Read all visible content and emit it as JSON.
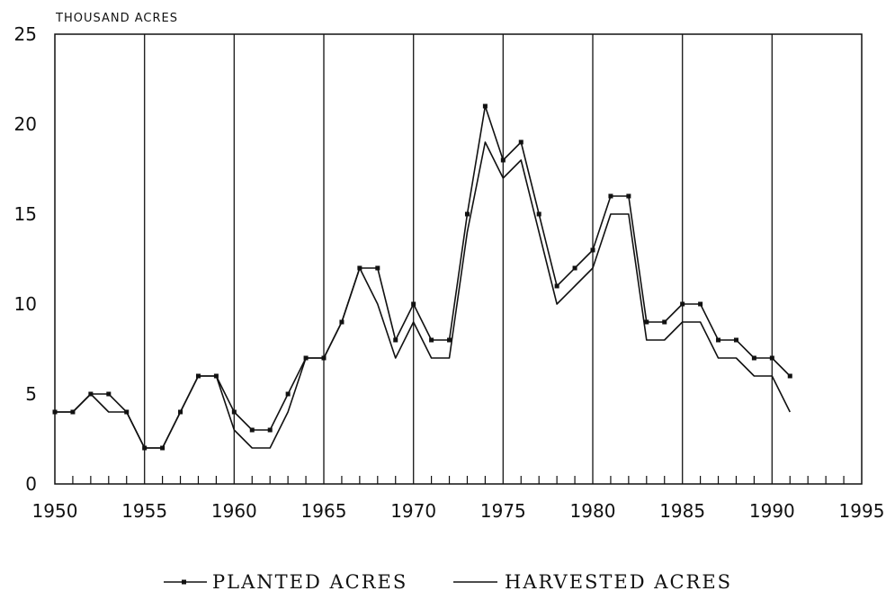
{
  "chart_data": {
    "type": "line",
    "title": "",
    "ylabel": "THOUSAND ACRES",
    "xlabel": "",
    "xlim": [
      1950,
      1995
    ],
    "ylim": [
      0,
      25
    ],
    "x_ticks": [
      1950,
      1955,
      1960,
      1965,
      1970,
      1975,
      1980,
      1985,
      1990,
      1995
    ],
    "y_ticks": [
      0,
      5,
      10,
      15,
      20,
      25
    ],
    "grid": "vertical lines every 5 years",
    "legend_position": "bottom-center",
    "series": [
      {
        "name": "PLANTED ACRES",
        "marker": "square",
        "color": "#111111",
        "x": [
          1950,
          1951,
          1952,
          1953,
          1954,
          1955,
          1956,
          1957,
          1958,
          1959,
          1960,
          1961,
          1962,
          1963,
          1964,
          1965,
          1966,
          1967,
          1968,
          1969,
          1970,
          1971,
          1972,
          1973,
          1974,
          1975,
          1976,
          1977,
          1978,
          1979,
          1980,
          1981,
          1982,
          1983,
          1984,
          1985,
          1986,
          1987,
          1988,
          1989,
          1990,
          1991
        ],
        "values": [
          4,
          4,
          5,
          5,
          4,
          2,
          2,
          4,
          6,
          6,
          4,
          3,
          3,
          5,
          7,
          7,
          9,
          12,
          12,
          8,
          10,
          8,
          8,
          15,
          21,
          18,
          19,
          15,
          11,
          12,
          13,
          16,
          16,
          9,
          9,
          10,
          10,
          8,
          8,
          7,
          7,
          6
        ]
      },
      {
        "name": "HARVESTED ACRES",
        "marker": "none",
        "color": "#111111",
        "x": [
          1950,
          1951,
          1952,
          1953,
          1954,
          1955,
          1956,
          1957,
          1958,
          1959,
          1960,
          1961,
          1962,
          1963,
          1964,
          1965,
          1966,
          1967,
          1968,
          1969,
          1970,
          1971,
          1972,
          1973,
          1974,
          1975,
          1976,
          1977,
          1978,
          1979,
          1980,
          1981,
          1982,
          1983,
          1984,
          1985,
          1986,
          1987,
          1988,
          1989,
          1990,
          1991
        ],
        "values": [
          4,
          4,
          5,
          4,
          4,
          2,
          2,
          4,
          6,
          6,
          3,
          2,
          2,
          4,
          7,
          7,
          9,
          12,
          10,
          7,
          9,
          7,
          7,
          14,
          19,
          17,
          18,
          14,
          10,
          11,
          12,
          15,
          15,
          8,
          8,
          9,
          9,
          7,
          7,
          6,
          6,
          4
        ]
      }
    ]
  }
}
